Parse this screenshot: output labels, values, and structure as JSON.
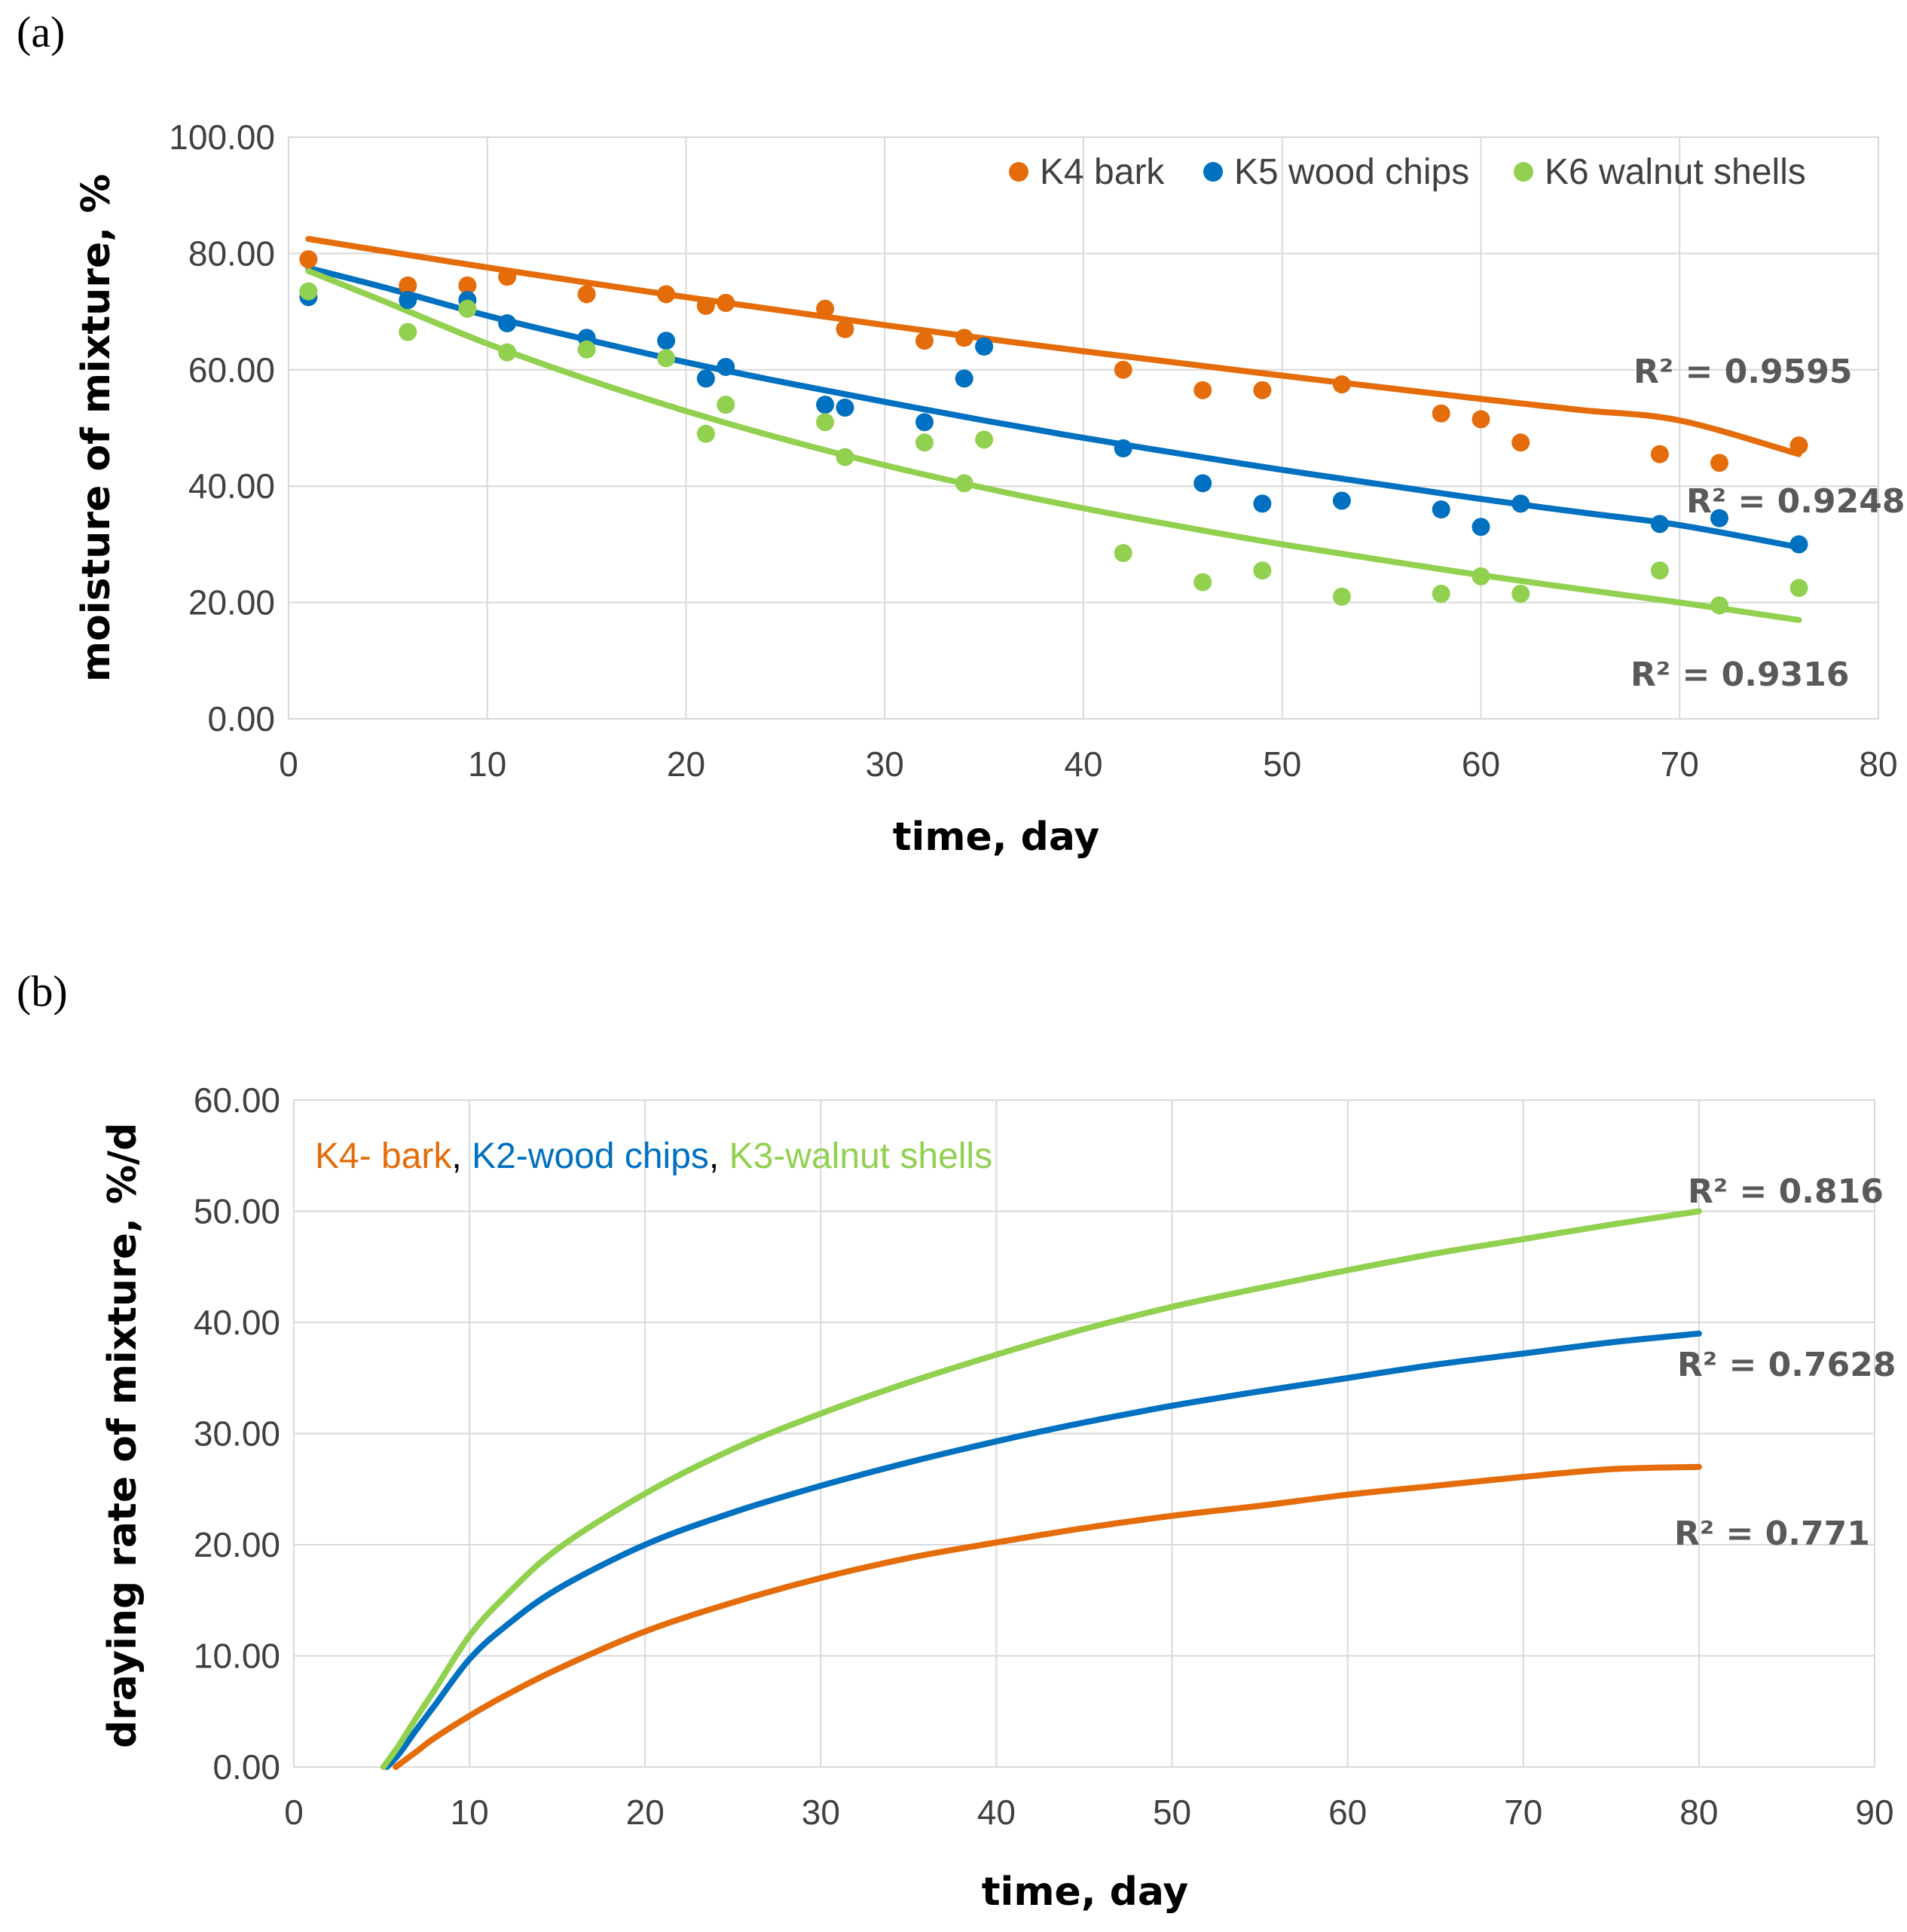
{
  "chart_data": [
    {
      "type": "scatter",
      "panel_label": "(a)",
      "xlabel": "time, day",
      "ylabel": "moisture of mixture, %",
      "xlim": [
        0,
        80
      ],
      "ylim": [
        0,
        100
      ],
      "x_ticks": [
        "0",
        "10",
        "20",
        "30",
        "40",
        "50",
        "60",
        "70",
        "80"
      ],
      "y_ticks": [
        "0.00",
        "20.00",
        "40.00",
        "60.00",
        "80.00",
        "100.00"
      ],
      "grid": true,
      "legend_position": "top-right",
      "series": [
        {
          "name": "K4 bark",
          "color": "#E46C0A",
          "points": [
            [
              1,
              79
            ],
            [
              6,
              74.5
            ],
            [
              9,
              74.5
            ],
            [
              11,
              76
            ],
            [
              15,
              73
            ],
            [
              19,
              73
            ],
            [
              21,
              71
            ],
            [
              22,
              71.5
            ],
            [
              27,
              70.5
            ],
            [
              28,
              67
            ],
            [
              32,
              65
            ],
            [
              34,
              65.5
            ],
            [
              35,
              64
            ],
            [
              42,
              60
            ],
            [
              46,
              56.5
            ],
            [
              49,
              56.5
            ],
            [
              53,
              57.5
            ],
            [
              58,
              52.5
            ],
            [
              60,
              51.5
            ],
            [
              62,
              47.5
            ],
            [
              69,
              45.5
            ],
            [
              72,
              44
            ],
            [
              76,
              47
            ]
          ],
          "trend": {
            "x": [
              1,
              5,
              10,
              15,
              20,
              25,
              30,
              35,
              40,
              45,
              50,
              55,
              60,
              65,
              70,
              76
            ],
            "y": [
              82.5,
              80.3,
              77.6,
              75.0,
              72.5,
              70.1,
              67.7,
              65.4,
              63.2,
              61.1,
              59.0,
              57.0,
              55.0,
              53.1,
              51.3,
              45.5
            ]
          },
          "r2_label": "R² = 0.9595"
        },
        {
          "name": "K5 wood chips",
          "color": "#0070C0",
          "points": [
            [
              1,
              72.5
            ],
            [
              6,
              72
            ],
            [
              9,
              72
            ],
            [
              11,
              68
            ],
            [
              15,
              65.5
            ],
            [
              19,
              65
            ],
            [
              21,
              58.5
            ],
            [
              22,
              60.5
            ],
            [
              27,
              54
            ],
            [
              28,
              53.5
            ],
            [
              32,
              51
            ],
            [
              34,
              58.5
            ],
            [
              35,
              64
            ],
            [
              42,
              46.5
            ],
            [
              46,
              40.5
            ],
            [
              49,
              37
            ],
            [
              53,
              37.5
            ],
            [
              58,
              36
            ],
            [
              60,
              33
            ],
            [
              62,
              37
            ],
            [
              69,
              33.5
            ],
            [
              72,
              34.5
            ],
            [
              76,
              30
            ]
          ],
          "trend": {
            "x": [
              1,
              5,
              10,
              15,
              20,
              25,
              30,
              35,
              40,
              45,
              50,
              55,
              60,
              65,
              70,
              76
            ],
            "y": [
              77.5,
              74.0,
              69.3,
              65.2,
              61.3,
              57.8,
              54.5,
              51.3,
              48.3,
              45.5,
              42.8,
              40.3,
              37.8,
              35.5,
              33.3,
              29.5
            ]
          },
          "r2_label": "R² = 0.9248"
        },
        {
          "name": "K6 walnut shells",
          "color": "#92D050",
          "points": [
            [
              1,
              73.5
            ],
            [
              6,
              66.5
            ],
            [
              9,
              70.5
            ],
            [
              11,
              63
            ],
            [
              15,
              63.5
            ],
            [
              19,
              62
            ],
            [
              21,
              49
            ],
            [
              22,
              54
            ],
            [
              27,
              51
            ],
            [
              28,
              45
            ],
            [
              32,
              47.5
            ],
            [
              34,
              40.5
            ],
            [
              35,
              48
            ],
            [
              42,
              28.5
            ],
            [
              46,
              23.5
            ],
            [
              49,
              25.5
            ],
            [
              53,
              21
            ],
            [
              58,
              21.5
            ],
            [
              60,
              24.5
            ],
            [
              62,
              21.5
            ],
            [
              69,
              25.5
            ],
            [
              72,
              19.5
            ],
            [
              76,
              22.5
            ]
          ],
          "trend": {
            "x": [
              1,
              5,
              10,
              15,
              20,
              25,
              30,
              35,
              40,
              45,
              50,
              55,
              60,
              65,
              70,
              76
            ],
            "y": [
              77,
              71.5,
              64.5,
              58.4,
              52.9,
              48.0,
              43.6,
              39.7,
              36.2,
              33.0,
              30.0,
              27.3,
              24.7,
              22.3,
              20.0,
              17.0
            ]
          },
          "r2_label": "R² = 0.9316"
        }
      ]
    },
    {
      "type": "line",
      "panel_label": "(b)",
      "xlabel": "time, day",
      "ylabel": "draying rate of mixture, %/d",
      "xlim": [
        0,
        90
      ],
      "ylim": [
        0,
        60
      ],
      "x_ticks": [
        "0",
        "10",
        "20",
        "30",
        "40",
        "50",
        "60",
        "70",
        "80",
        "90"
      ],
      "y_ticks": [
        "0.00",
        "10.00",
        "20.00",
        "30.00",
        "40.00",
        "50.00",
        "60.00"
      ],
      "grid": true,
      "legend_position": "top-left",
      "legend_parts": [
        {
          "text": "K4- bark",
          "color": "#E46C0A"
        },
        {
          "text": ", ",
          "color": "#000000"
        },
        {
          "text": "K2-wood chips",
          "color": "#0070C0"
        },
        {
          "text": ", ",
          "color": "#000000"
        },
        {
          "text": "K3-walnut shells",
          "color": "#92D050"
        }
      ],
      "series": [
        {
          "name": "K4- bark",
          "color": "#E46C0A",
          "x": [
            5.8,
            7,
            8,
            10,
            12,
            15,
            20,
            25,
            30,
            35,
            40,
            45,
            50,
            55,
            60,
            65,
            70,
            75,
            80
          ],
          "y": [
            0,
            1.4,
            2.6,
            4.6,
            6.4,
            8.8,
            12.2,
            14.8,
            17.0,
            18.8,
            20.2,
            21.5,
            22.6,
            23.5,
            24.5,
            25.3,
            26.1,
            26.8,
            27.0
          ],
          "r2_label": "R² = 0.771"
        },
        {
          "name": "K2-wood chips",
          "color": "#0070C0",
          "x": [
            5.3,
            6,
            7,
            8,
            10,
            12,
            15,
            20,
            25,
            30,
            35,
            40,
            45,
            50,
            55,
            60,
            65,
            70,
            75,
            80
          ],
          "y": [
            0,
            1.2,
            3.4,
            5.5,
            9.7,
            12.6,
            16.0,
            20.0,
            22.9,
            25.3,
            27.4,
            29.3,
            31.0,
            32.5,
            33.8,
            35.0,
            36.2,
            37.2,
            38.2,
            39.0
          ],
          "r2_label": "R² = 0.7628"
        },
        {
          "name": "K3-walnut shells",
          "color": "#92D050",
          "x": [
            5.1,
            6,
            7,
            8,
            10,
            12,
            15,
            20,
            25,
            30,
            35,
            40,
            45,
            50,
            55,
            60,
            65,
            70,
            75,
            80
          ],
          "y": [
            0,
            2.0,
            4.5,
            6.9,
            11.8,
            15.3,
            19.6,
            24.6,
            28.6,
            31.8,
            34.6,
            37.1,
            39.4,
            41.4,
            43.1,
            44.7,
            46.2,
            47.5,
            48.8,
            50.0
          ],
          "r2_label": "R² = 0.816"
        }
      ]
    }
  ]
}
